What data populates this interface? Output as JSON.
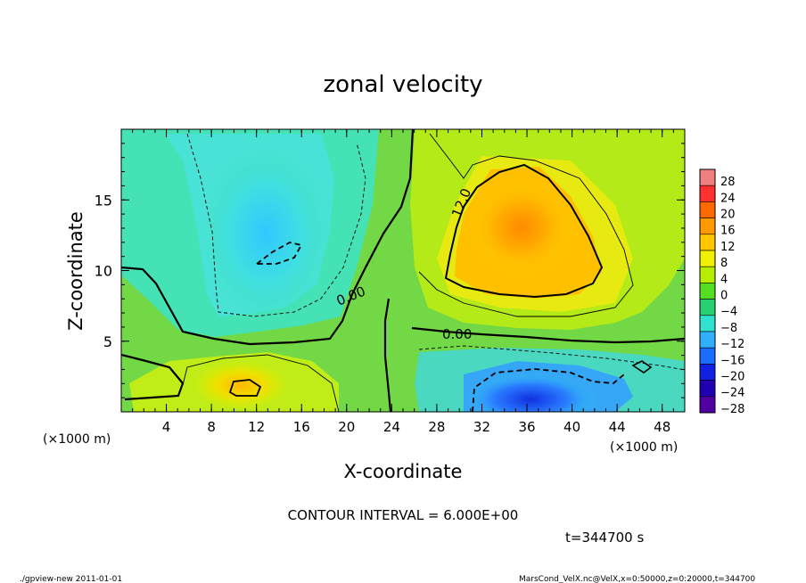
{
  "chart_data": {
    "type": "heatmap",
    "title": "zonal velocity",
    "xlabel": "X-coordinate",
    "ylabel": "Z-coordinate",
    "x_unit": "(×1000 m)",
    "y_unit": "(×1000 m)",
    "xlim": [
      0,
      50
    ],
    "ylim": [
      0,
      20
    ],
    "x_ticks": [
      "4",
      "8",
      "12",
      "16",
      "20",
      "24",
      "28",
      "32",
      "36",
      "40",
      "44",
      "48"
    ],
    "y_ticks": [
      "5",
      "10",
      "15"
    ],
    "colorbar_levels": [
      28,
      24,
      20,
      16,
      12,
      8,
      4,
      0,
      -4,
      -8,
      -12,
      -16,
      -20,
      -24,
      -28
    ],
    "colorbar_labels": [
      "28",
      "24",
      "20",
      "16",
      "12",
      "8",
      "4",
      "0",
      "−4",
      "−8",
      "−12",
      "−16",
      "−20",
      "−24",
      "−28"
    ],
    "colorbar_colors": [
      "#f08080",
      "#ff3030",
      "#ff6a00",
      "#ff9a00",
      "#ffc800",
      "#f0f000",
      "#b8ec00",
      "#55dd22",
      "#28d070",
      "#30e0d0",
      "#30b0ff",
      "#1a6cff",
      "#1020e0",
      "#2000b0",
      "#5000a0"
    ],
    "contour_labels": [
      "0.00",
      "0.00",
      "12.0"
    ],
    "contour_interval": 6.0,
    "features": [
      {
        "kind": "min",
        "x": 14,
        "z": 11.5,
        "value": -12
      },
      {
        "kind": "max",
        "x": 36,
        "z": 13.5,
        "value": 16
      },
      {
        "kind": "max",
        "x": 12,
        "z": 1.6,
        "value": 10
      },
      {
        "kind": "min",
        "x": 37,
        "z": 1.0,
        "value": -18
      }
    ]
  },
  "annotations": {
    "contour_interval_text": "CONTOUR INTERVAL = 6.000E+00",
    "time_text": "t=344700 s",
    "footer_left": "./gpview-new  2011-01-01",
    "footer_right": "MarsCond_VelX.nc@VelX,x=0:50000,z=0:20000,t=344700"
  }
}
